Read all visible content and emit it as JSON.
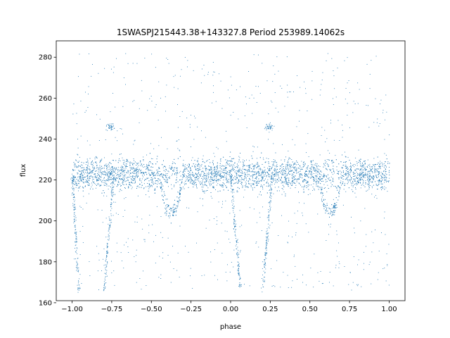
{
  "chart_data": {
    "type": "scatter",
    "title": "1SWASPJ215443.38+143327.8 Period 253989.14062s",
    "xlabel": "phase",
    "ylabel": "flux",
    "xlim": [
      -1.1,
      1.1
    ],
    "ylim": [
      161,
      288
    ],
    "x_ticks": [
      -1.0,
      -0.75,
      -0.5,
      -0.25,
      0.0,
      0.25,
      0.5,
      0.75,
      1.0
    ],
    "x_tick_labels": [
      "−1.00",
      "−0.75",
      "−0.50",
      "−0.25",
      "0.00",
      "0.25",
      "0.50",
      "0.75",
      "1.00"
    ],
    "y_ticks": [
      160,
      180,
      200,
      220,
      240,
      260,
      280
    ],
    "y_tick_labels": [
      "160",
      "180",
      "200",
      "220",
      "240",
      "260",
      "280"
    ],
    "grid": false,
    "legend": "none",
    "marker_color": "#1f77b4",
    "series": [
      {
        "description_points": "phase-folded light curve, dense band",
        "baseline": {
          "x": [
            -1.0,
            1.0
          ],
          "y_center": 223,
          "y_spread": [
            213,
            233
          ]
        },
        "dips": [
          {
            "x": [
              -0.45,
              -0.4,
              -0.35,
              -0.3
            ],
            "y": [
              214,
              205,
              205,
              214
            ]
          },
          {
            "x": [
              0.55,
              0.6,
              0.65,
              0.7
            ],
            "y": [
              214,
              205,
              205,
              214
            ]
          }
        ],
        "streaks": [
          {
            "x": [
              -1.0,
              -0.96
            ],
            "y": [
              222,
              166
            ]
          },
          {
            "x": [
              -0.8,
              -0.74
            ],
            "y": [
              166,
              222
            ]
          },
          {
            "x": [
              0.0,
              0.06
            ],
            "y": [
              222,
              166
            ]
          },
          {
            "x": [
              0.2,
              0.26
            ],
            "y": [
              166,
              222
            ]
          }
        ],
        "clumps": [
          {
            "x": -0.76,
            "y": 246
          },
          {
            "x": 0.24,
            "y": 246
          }
        ]
      }
    ]
  }
}
